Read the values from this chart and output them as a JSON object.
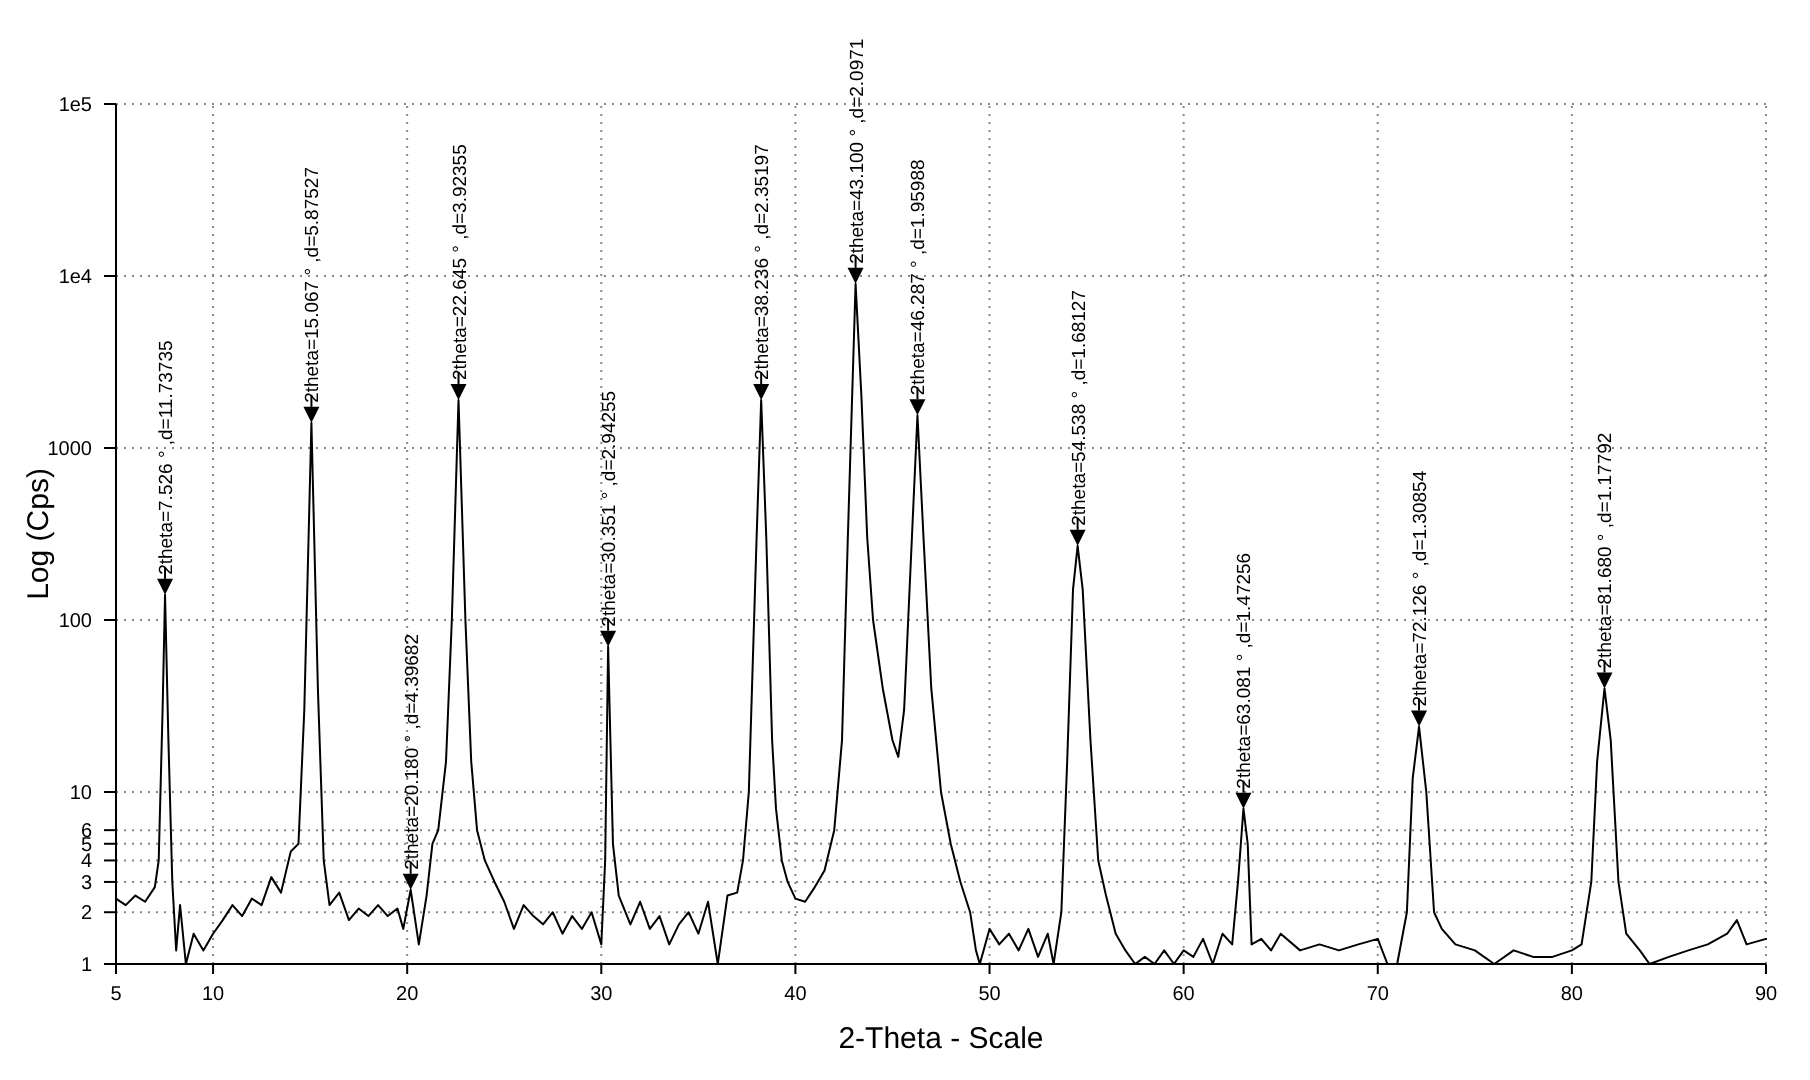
{
  "chart_data": {
    "type": "line",
    "xlabel": "2-Theta - Scale",
    "ylabel": "Log (Cps)",
    "log": "y",
    "grid": true,
    "marker": "none",
    "line_style": "solid",
    "xlim": [
      5,
      90
    ],
    "xticks": [
      5,
      10,
      20,
      30,
      40,
      50,
      60,
      70,
      80,
      90
    ],
    "ylim": [
      1,
      100000
    ],
    "yticks": [
      1,
      2,
      3,
      4,
      5,
      6,
      10,
      100,
      1000,
      {
        "value": 10000,
        "label": "1e4"
      },
      {
        "value": 100000,
        "label": "1e5"
      }
    ],
    "series": [
      {
        "color": "#000000",
        "x": [
          5,
          5.5,
          6,
          6.5,
          7,
          7.2,
          7.4,
          7.526,
          7.7,
          7.9,
          8.1,
          8.3,
          8.6,
          9,
          9.5,
          10,
          10.5,
          11,
          11.5,
          12,
          12.5,
          13,
          13.5,
          14,
          14.4,
          14.7,
          15.067,
          15.4,
          15.7,
          16,
          16.5,
          17,
          17.5,
          18,
          18.5,
          19,
          19.5,
          19.8,
          20.18,
          20.6,
          21,
          21.3,
          21.6,
          22,
          22.3,
          22.645,
          23,
          23.3,
          23.6,
          24,
          24.5,
          25,
          25.5,
          26,
          26.5,
          27,
          27.5,
          28,
          28.5,
          29,
          29.5,
          30,
          30.2,
          30.351,
          30.6,
          30.9,
          31.5,
          32,
          32.5,
          33,
          33.5,
          34,
          34.5,
          35,
          35.5,
          36,
          36.5,
          37,
          37.3,
          37.6,
          38,
          38.236,
          38.5,
          38.8,
          39,
          39.3,
          39.6,
          40,
          40.5,
          41,
          41.5,
          42,
          42.4,
          42.7,
          43.1,
          43.4,
          43.7,
          44,
          44.5,
          45,
          45.3,
          45.6,
          46,
          46.287,
          46.6,
          47,
          47.5,
          48,
          48.5,
          49,
          49.3,
          49.5,
          50,
          50.5,
          51,
          51.5,
          52,
          52.5,
          53,
          53.3,
          53.7,
          54,
          54.3,
          54.538,
          54.8,
          55.2,
          55.6,
          56,
          56.5,
          57,
          57.5,
          58,
          58.5,
          59,
          59.5,
          60,
          60.5,
          61,
          61.5,
          62,
          62.5,
          62.8,
          63.081,
          63.3,
          63.5,
          64,
          64.5,
          65,
          66,
          67,
          68,
          69,
          70,
          70.5,
          71,
          71.5,
          71.8,
          72.126,
          72.5,
          72.9,
          73.3,
          74,
          75,
          76,
          77,
          78,
          79,
          80,
          80.5,
          81,
          81.3,
          81.68,
          82,
          82.4,
          82.8,
          83.5,
          84,
          85,
          86,
          87,
          88,
          88.5,
          89,
          90
        ],
        "values": [
          2.4,
          2.2,
          2.5,
          2.3,
          2.8,
          4,
          30,
          140,
          20,
          3,
          1.2,
          2.2,
          1,
          1.5,
          1.2,
          1.5,
          1.8,
          2.2,
          1.9,
          2.4,
          2.2,
          3.2,
          2.6,
          4.5,
          5,
          30,
          1400,
          40,
          4,
          2.2,
          2.6,
          1.8,
          2.1,
          1.9,
          2.2,
          1.9,
          2.1,
          1.6,
          2.7,
          1.3,
          2.5,
          5,
          6,
          15,
          100,
          1900,
          100,
          15,
          6,
          4,
          3,
          2.3,
          1.6,
          2.2,
          1.9,
          1.7,
          2,
          1.5,
          1.9,
          1.6,
          2,
          1.3,
          4,
          70,
          5,
          2.5,
          1.7,
          2.3,
          1.6,
          1.9,
          1.3,
          1.7,
          2,
          1.5,
          2.3,
          1,
          2.5,
          2.6,
          4,
          10,
          300,
          1900,
          300,
          20,
          8,
          4,
          3,
          2.4,
          2.3,
          2.8,
          3.5,
          6,
          20,
          300,
          9000,
          2000,
          300,
          100,
          40,
          20,
          16,
          30,
          300,
          1550,
          300,
          40,
          10,
          5,
          3,
          2,
          1.2,
          1,
          1.6,
          1.3,
          1.5,
          1.2,
          1.6,
          1.1,
          1.5,
          1,
          2,
          15,
          150,
          270,
          150,
          20,
          4,
          2.5,
          1.5,
          1.2,
          1,
          1.1,
          1,
          1.2,
          1,
          1.2,
          1.1,
          1.4,
          1,
          1.5,
          1.3,
          3,
          8,
          5,
          1.3,
          1.4,
          1.2,
          1.5,
          1.2,
          1.3,
          1.2,
          1.3,
          1.4,
          1,
          1,
          2,
          12,
          24,
          10,
          2,
          1.6,
          1.3,
          1.2,
          1,
          1.2,
          1.1,
          1.1,
          1.2,
          1.3,
          3,
          15,
          40,
          20,
          3,
          1.5,
          1.2,
          1,
          1.1,
          1.2,
          1.3,
          1.5,
          1.8,
          1.3,
          1.4
        ]
      }
    ],
    "annotations": [
      {
        "text": "2theta=7.526 ° ,d=11.73735",
        "x": 7.526,
        "y": 140
      },
      {
        "text": "2theta=15.067 ° ,d=5.87527",
        "x": 15.067,
        "y": 1400
      },
      {
        "text": "2theta=20.180 ° ,d=4.39682",
        "x": 20.18,
        "y": 2.7
      },
      {
        "text": "2theta=22.645 ° ,d=3.92355",
        "x": 22.645,
        "y": 1900
      },
      {
        "text": "2theta=30.351 ° ,d=2.94255",
        "x": 30.351,
        "y": 70
      },
      {
        "text": "2theta=38.236 ° ,d=2.35197",
        "x": 38.236,
        "y": 1900
      },
      {
        "text": "2theta=43.100 ° ,d=2.0971",
        "x": 43.1,
        "y": 9000
      },
      {
        "text": "2theta=46.287 ° ,d=1.95988",
        "x": 46.287,
        "y": 1550
      },
      {
        "text": "2theta=54.538 ° ,d=1.68127",
        "x": 54.538,
        "y": 270
      },
      {
        "text": "2theta=63.081 ° ,d=1.47256",
        "x": 63.081,
        "y": 8
      },
      {
        "text": "2theta=72.126 ° ,d=1.30854",
        "x": 72.126,
        "y": 24
      },
      {
        "text": "2theta=81.680 ° ,d=1.17792",
        "x": 81.68,
        "y": 40
      }
    ]
  }
}
